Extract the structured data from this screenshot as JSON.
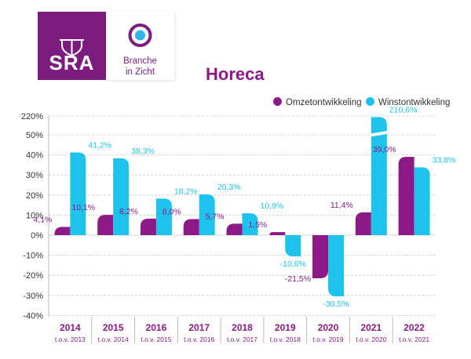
{
  "header": {
    "sra_logo_text": "SRA",
    "branche_logo_line1": "Branche",
    "branche_logo_line2": "in Zicht"
  },
  "colors": {
    "omzet": "#8b1a87",
    "winst": "#1ec3ec",
    "brand_purple": "#7d1c7f"
  },
  "chart_data": {
    "type": "bar",
    "title": "Horeca",
    "categories": [
      "2014",
      "2015",
      "2016",
      "2017",
      "2018",
      "2019",
      "2020",
      "2021",
      "2022"
    ],
    "subcategories": [
      "t.o.v. 2013",
      "t.o.v. 2014",
      "t.o.v. 2015",
      "t.o.v. 2016",
      "t.o.v. 2017",
      "t.o.v. 2018",
      "t.o.v. 2019",
      "t.o.v. 2020",
      "t.o.v. 2021"
    ],
    "series": [
      {
        "name": "Omzetontwikkeling",
        "values": [
          4.1,
          10.1,
          8.2,
          8.0,
          5.7,
          1.5,
          -21.5,
          11.4,
          39.0
        ],
        "labels": [
          "4,1%",
          "10,1%",
          "8,2%",
          "8,0%",
          "5,7%",
          "1,5%",
          "-21,5%",
          "11,4%",
          "39,0%"
        ]
      },
      {
        "name": "Winstontwikkeling",
        "values": [
          41.2,
          38.3,
          18.2,
          20.3,
          10.9,
          -10.6,
          -30.5,
          210.6,
          33.8
        ],
        "labels": [
          "41,2%",
          "38,3%",
          "18,2%",
          "20,3%",
          "10,9%",
          "-10,6%",
          "-30,5%",
          "210,6%",
          "33,8%"
        ]
      }
    ],
    "y_ticks": [
      220,
      50,
      40,
      30,
      20,
      10,
      0,
      -10,
      -20,
      -30,
      -40
    ],
    "y_tick_labels": [
      "220%",
      "50%",
      "40%",
      "30%",
      "20%",
      "10%",
      "0%",
      "-10%",
      "-20%",
      "-30%",
      "-40%"
    ],
    "axis_break": {
      "from": 50,
      "to": 220
    },
    "ylim": [
      -40,
      220
    ],
    "legend_position": "top-right"
  }
}
